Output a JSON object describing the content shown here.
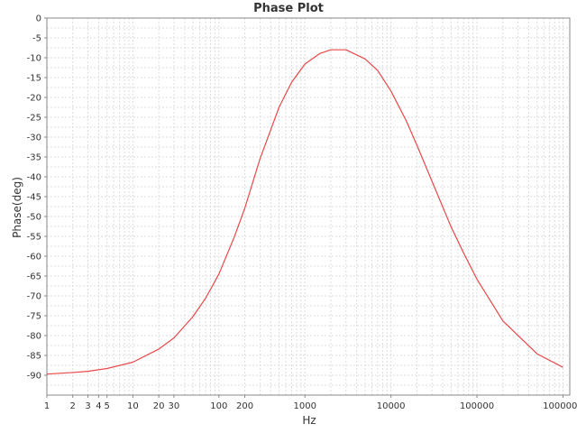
{
  "chart_data": {
    "type": "line",
    "title": "Phase Plot",
    "xlabel": "Hz",
    "ylabel": "Phase(deg)",
    "xscale": "log",
    "xlim": [
      1,
      1200000
    ],
    "ylim": [
      -95,
      0
    ],
    "grid": true,
    "legend": "none",
    "colors": {
      "series": "#e8484a",
      "grid": "#dddddd",
      "axis": "#888888",
      "text": "#333333"
    },
    "yticks": [
      "0",
      "-5",
      "-10",
      "-15",
      "-20",
      "-25",
      "-30",
      "-35",
      "-40",
      "-45",
      "-50",
      "-55",
      "-60",
      "-65",
      "-70",
      "-75",
      "-80",
      "-85",
      "-90"
    ],
    "xticks": [
      {
        "value": 1,
        "label": "1"
      },
      {
        "value": 2,
        "label": "2"
      },
      {
        "value": 3,
        "label": "3"
      },
      {
        "value": 4,
        "label": "4"
      },
      {
        "value": 5,
        "label": "5"
      },
      {
        "value": 10,
        "label": "10"
      },
      {
        "value": 20,
        "label": "20"
      },
      {
        "value": 30,
        "label": "30"
      },
      {
        "value": 100,
        "label": "100"
      },
      {
        "value": 200,
        "label": "200"
      },
      {
        "value": 1000,
        "label": "1000"
      },
      {
        "value": 10000,
        "label": "10000"
      },
      {
        "value": 100000,
        "label": "100000"
      },
      {
        "value": 1000000,
        "label": "1000000"
      }
    ],
    "series": [
      {
        "x": [
          1,
          2,
          3,
          5,
          10,
          20,
          30,
          50,
          70,
          100,
          150,
          200,
          300,
          500,
          700,
          1000,
          1500,
          2000,
          3000,
          5000,
          7000,
          10000,
          15000,
          20000,
          30000,
          50000,
          70000,
          100000,
          200000,
          500000,
          1000000
        ],
        "y": [
          -89.7,
          -89.3,
          -89.0,
          -88.3,
          -86.7,
          -83.4,
          -80.6,
          -75.2,
          -70.6,
          -64.5,
          -55.3,
          -47.9,
          -35.5,
          -22.5,
          -16.2,
          -11.6,
          -8.9,
          -8.0,
          -8.0,
          -10.3,
          -13.2,
          -18.4,
          -25.8,
          -32.0,
          -41.1,
          -52.6,
          -59.2,
          -65.8,
          -76.3,
          -84.6,
          -88.0
        ]
      }
    ]
  }
}
